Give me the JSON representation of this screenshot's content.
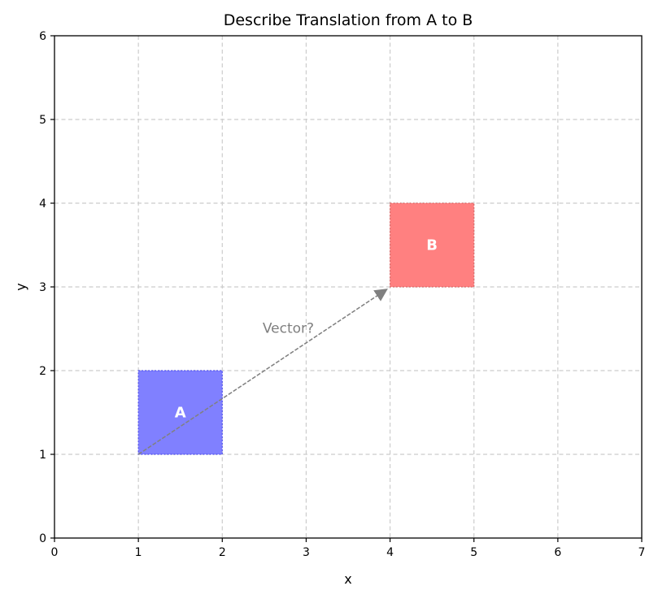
{
  "chart_data": {
    "type": "scatter",
    "title": "Describe Translation from A to B",
    "xlabel": "x",
    "ylabel": "y",
    "xlim": [
      0,
      7
    ],
    "ylim": [
      0,
      6
    ],
    "xticks": [
      "0",
      "1",
      "2",
      "3",
      "4",
      "5",
      "6",
      "7"
    ],
    "yticks": [
      "0",
      "1",
      "2",
      "3",
      "4",
      "5",
      "6"
    ],
    "grid": true,
    "shapes": [
      {
        "label": "A",
        "x": [
          1,
          2
        ],
        "y": [
          1,
          2
        ],
        "color": "#8080ff",
        "edge": "#5050ee"
      },
      {
        "label": "B",
        "x": [
          4,
          5
        ],
        "y": [
          3,
          4
        ],
        "color": "#ff8080",
        "edge": "#dd6666"
      }
    ],
    "arrow": {
      "from": [
        1,
        1
      ],
      "to": [
        4,
        3
      ],
      "color": "#808080"
    },
    "annotation": {
      "text": "Vector?",
      "x": 2.5,
      "y": 2.5
    }
  }
}
